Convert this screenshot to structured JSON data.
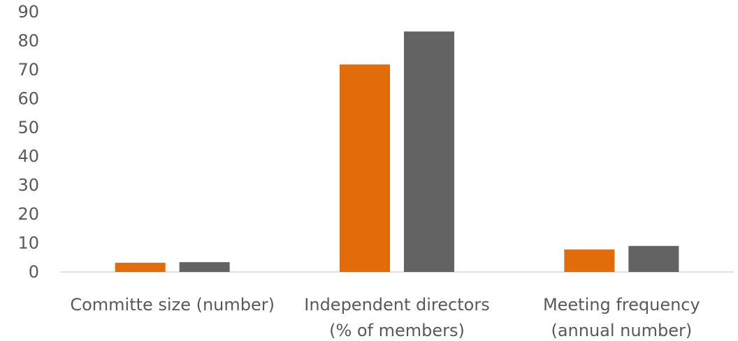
{
  "chart_data": {
    "type": "bar",
    "title": "",
    "xlabel": "",
    "ylabel": "",
    "ylim": [
      0,
      90
    ],
    "y_ticks": [
      0,
      10,
      20,
      30,
      40,
      50,
      60,
      70,
      80,
      90
    ],
    "grid": false,
    "legend": "none",
    "categories": [
      [
        "Committe size (number)"
      ],
      [
        "Independent directors",
        "(% of members)"
      ],
      [
        "Meeting frequency",
        "(annual number)"
      ]
    ],
    "series": [
      {
        "color": "#E36C0A",
        "values": [
          3.2,
          71.8,
          7.8
        ]
      },
      {
        "color": "#636363",
        "values": [
          3.4,
          83.2,
          9.0
        ]
      }
    ]
  }
}
